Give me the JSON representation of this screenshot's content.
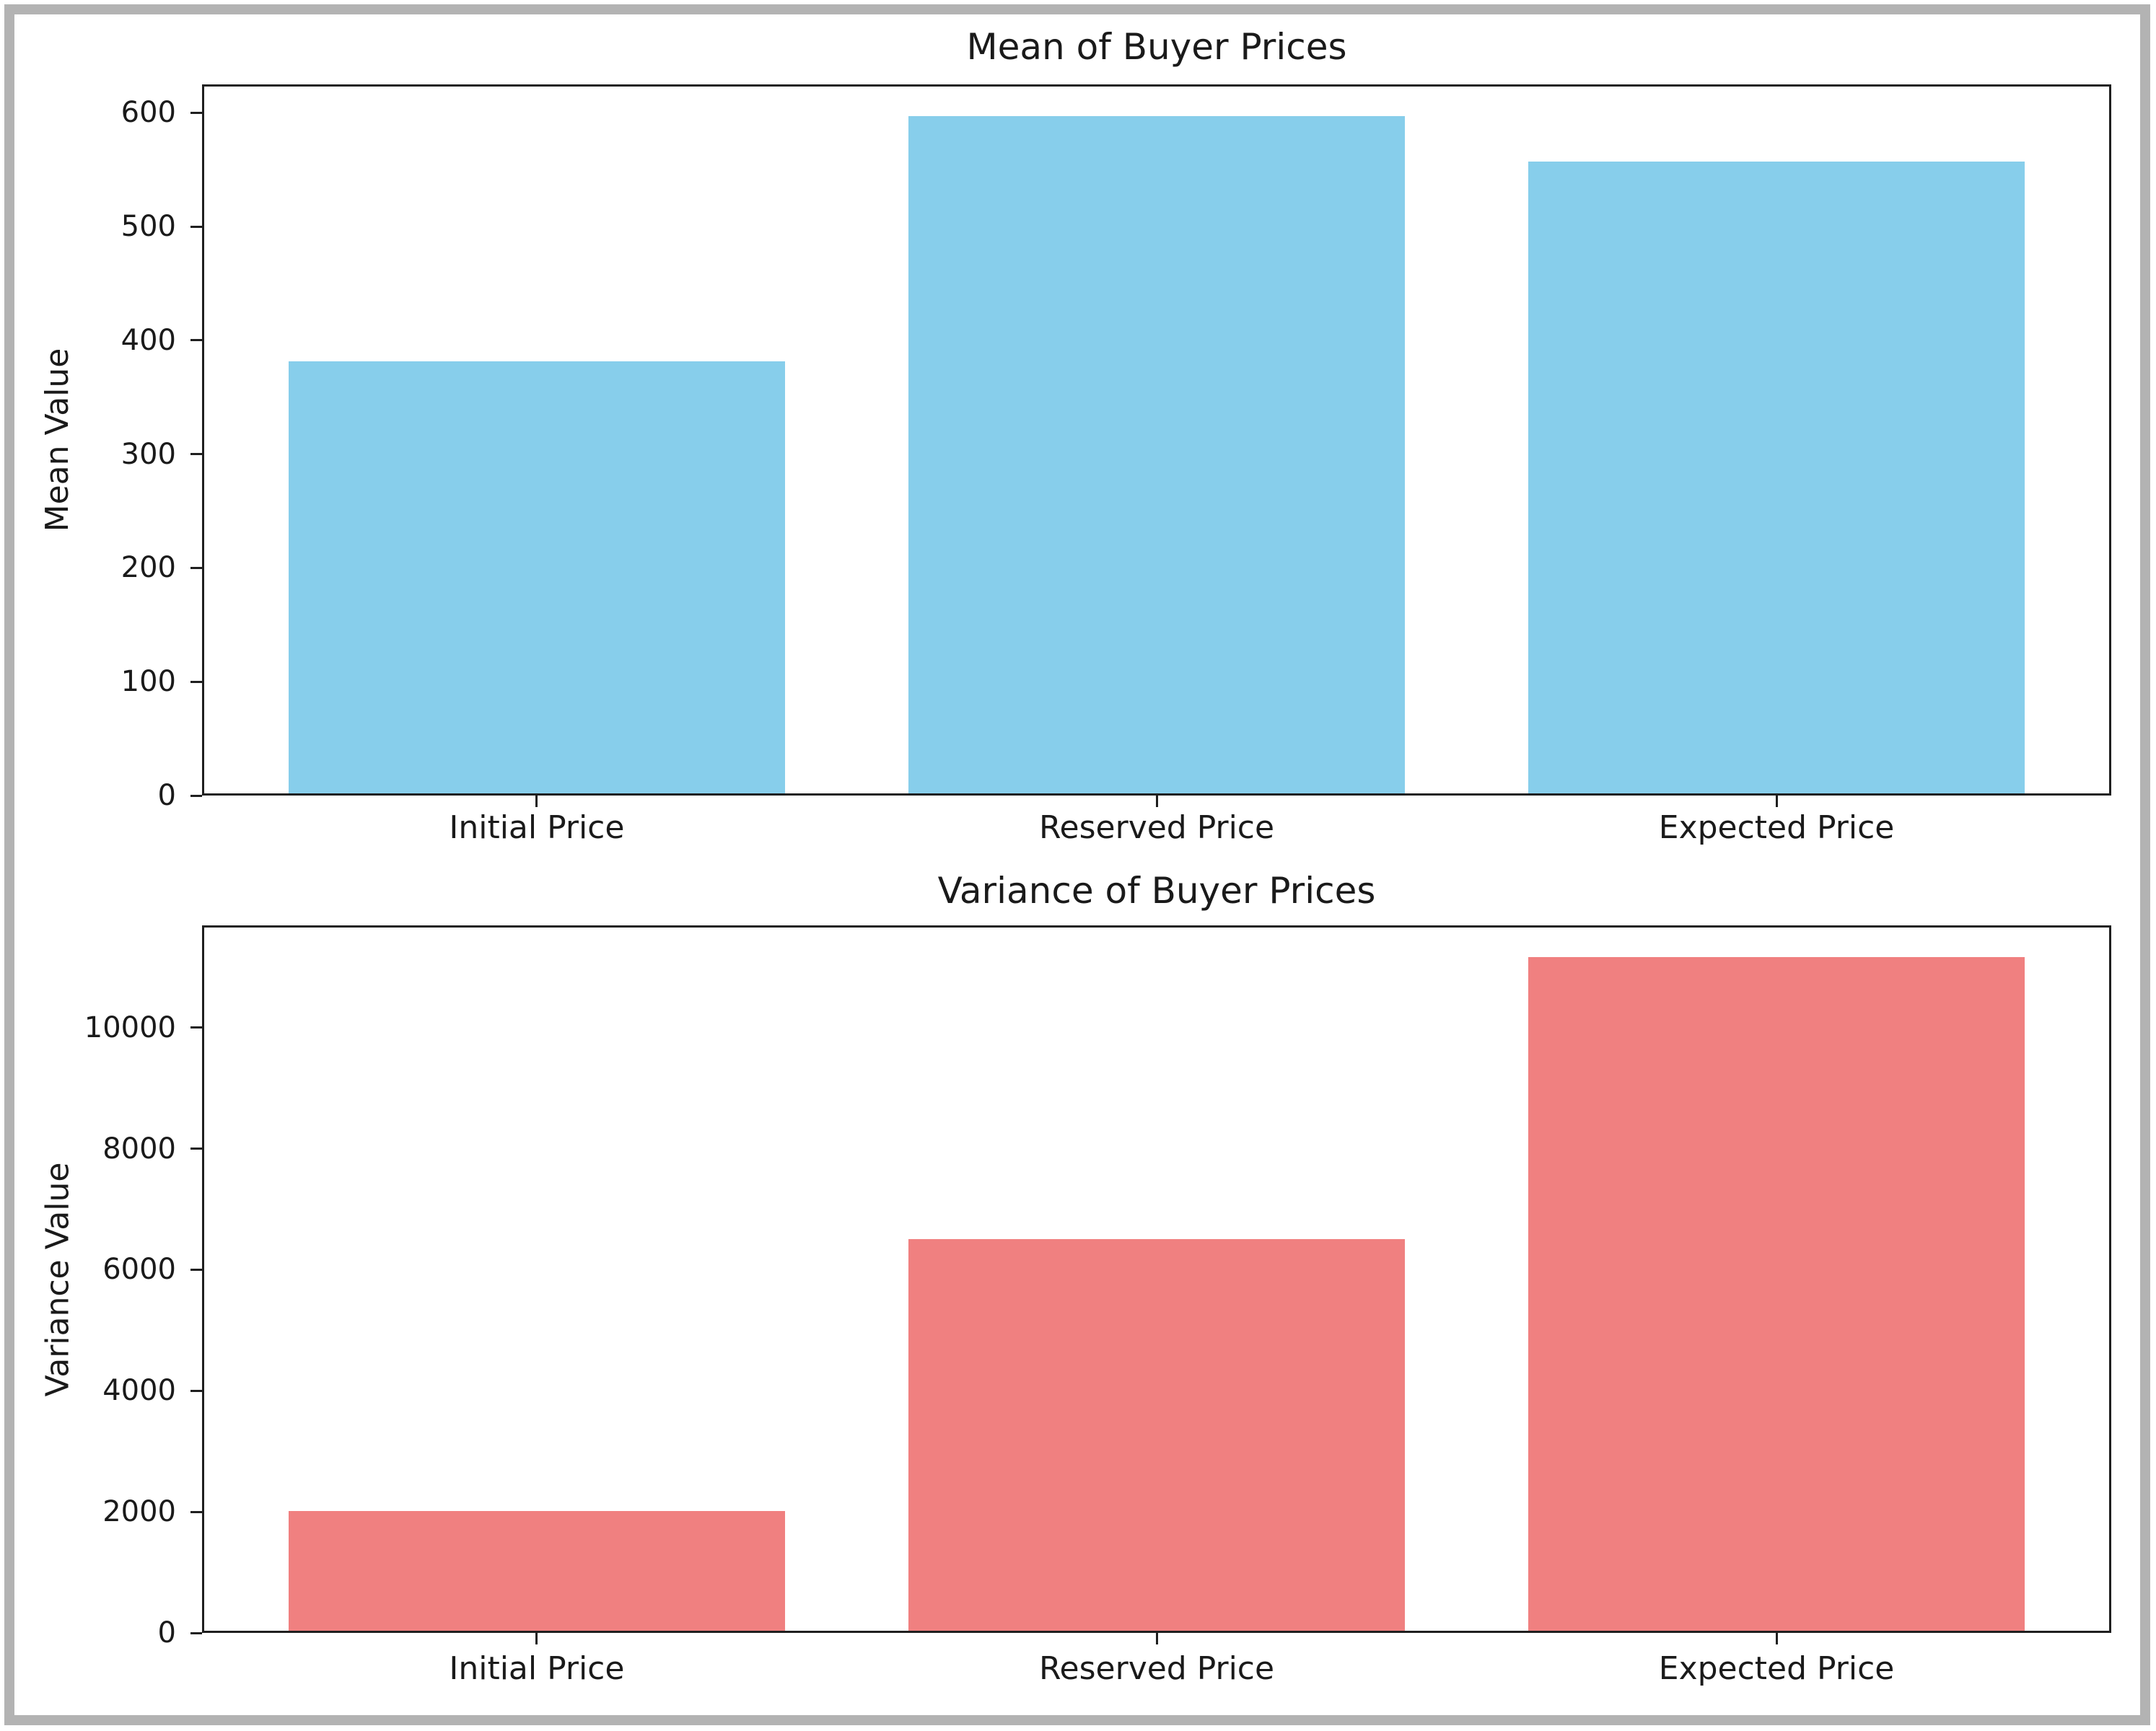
{
  "figure": {
    "background_color": "#ffffff",
    "frame_color": "#b3b3b3",
    "axis_color": "#1f1f1f",
    "text_color": "#1a1a1a"
  },
  "chart_data": [
    {
      "type": "bar",
      "title": "Mean of Buyer Prices",
      "xlabel": "",
      "ylabel": "Mean Value",
      "categories": [
        "Initial Price",
        "Reserved Price",
        "Expected Price"
      ],
      "values": [
        380,
        595,
        555
      ],
      "bar_color": "#87CEEB",
      "ylim": [
        0,
        625
      ],
      "yticks": [
        0,
        100,
        200,
        300,
        400,
        500,
        600
      ],
      "grid": false,
      "legend_position": "none"
    },
    {
      "type": "bar",
      "title": "Variance of Buyer Prices",
      "xlabel": "",
      "ylabel": "Variance Value",
      "categories": [
        "Initial Price",
        "Reserved Price",
        "Expected Price"
      ],
      "values": [
        1980,
        6475,
        11130
      ],
      "bar_color": "#F08080",
      "ylim": [
        0,
        11690
      ],
      "yticks": [
        0,
        2000,
        4000,
        6000,
        8000,
        10000
      ],
      "grid": false,
      "legend_position": "none"
    }
  ]
}
